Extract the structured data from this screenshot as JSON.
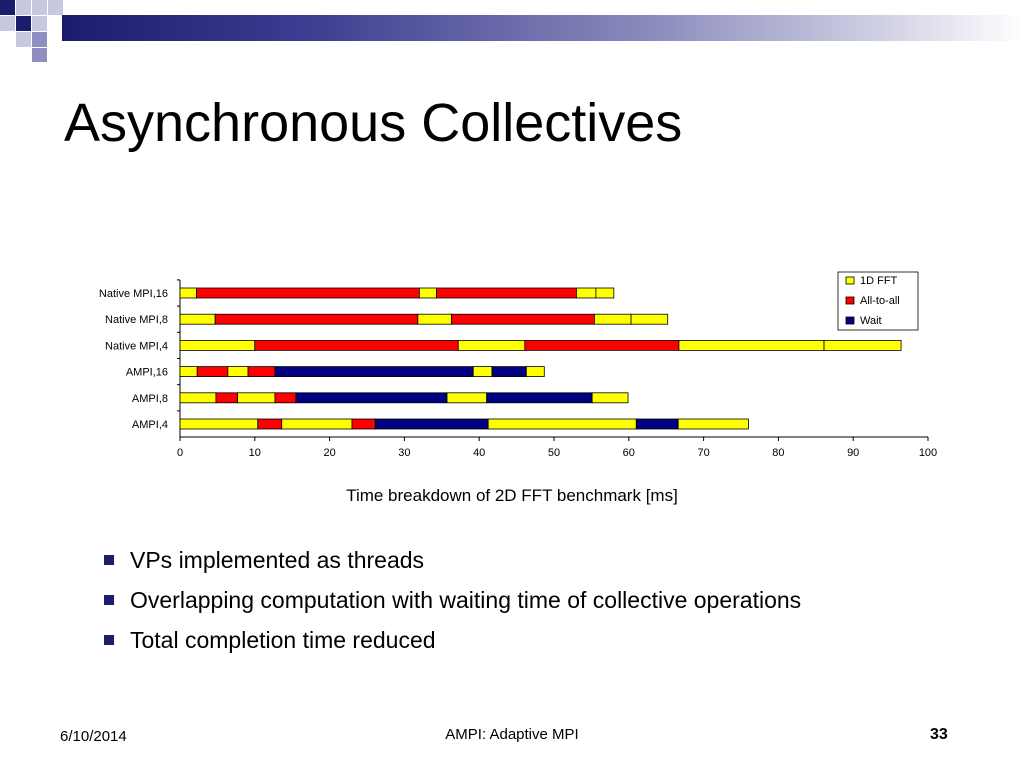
{
  "slide": {
    "title": "Asynchronous Collectives",
    "caption": "Time breakdown of 2D FFT benchmark [ms]",
    "bullets": [
      "VPs implemented as threads",
      "Overlapping computation with waiting time of collective operations",
      "Total completion time reduced"
    ],
    "footer": {
      "date": "6/10/2014",
      "center": "AMPI: Adaptive MPI",
      "page": "33"
    }
  },
  "colors": {
    "accent": "#1c1c6e",
    "fft": "#ffff00",
    "all_to_all": "#ff0000",
    "wait": "#000080"
  },
  "chart_data": {
    "type": "bar",
    "orientation": "horizontal",
    "stacked": true,
    "categories": [
      "Native MPI,16",
      "Native MPI,8",
      "Native MPI,4",
      "AMPI,16",
      "AMPI,8",
      "AMPI,4"
    ],
    "series_types": [
      "1D FFT",
      "All-to-all",
      "Wait"
    ],
    "legend_position": "top-right",
    "xlim": [
      0,
      100
    ],
    "xticks": [
      0,
      10,
      20,
      30,
      40,
      50,
      60,
      70,
      80,
      90,
      100
    ],
    "grid": false,
    "bars": [
      {
        "category": "Native MPI,16",
        "segments": [
          {
            "type": "1D FFT",
            "value": 2.2
          },
          {
            "type": "All-to-all",
            "value": 29.8
          },
          {
            "type": "1D FFT",
            "value": 2.3
          },
          {
            "type": "All-to-all",
            "value": 18.7
          },
          {
            "type": "1D FFT",
            "value": 2.6
          },
          {
            "type": "1D FFT",
            "value": 2.4
          }
        ]
      },
      {
        "category": "Native MPI,8",
        "segments": [
          {
            "type": "1D FFT",
            "value": 4.7
          },
          {
            "type": "All-to-all",
            "value": 27.1
          },
          {
            "type": "1D FFT",
            "value": 4.5
          },
          {
            "type": "All-to-all",
            "value": 19.1
          },
          {
            "type": "1D FFT",
            "value": 4.9
          },
          {
            "type": "1D FFT",
            "value": 4.9
          }
        ]
      },
      {
        "category": "Native MPI,4",
        "segments": [
          {
            "type": "1D FFT",
            "value": 10.0
          },
          {
            "type": "All-to-all",
            "value": 27.2
          },
          {
            "type": "1D FFT",
            "value": 8.9
          },
          {
            "type": "All-to-all",
            "value": 20.6
          },
          {
            "type": "1D FFT",
            "value": 19.4
          },
          {
            "type": "1D FFT",
            "value": 10.3
          }
        ]
      },
      {
        "category": "AMPI,16",
        "segments": [
          {
            "type": "1D FFT",
            "value": 2.3
          },
          {
            "type": "All-to-all",
            "value": 4.1
          },
          {
            "type": "1D FFT",
            "value": 2.7
          },
          {
            "type": "All-to-all",
            "value": 3.6
          },
          {
            "type": "Wait",
            "value": 26.5
          },
          {
            "type": "1D FFT",
            "value": 2.5
          },
          {
            "type": "Wait",
            "value": 4.6
          },
          {
            "type": "1D FFT",
            "value": 2.4
          }
        ]
      },
      {
        "category": "AMPI,8",
        "segments": [
          {
            "type": "1D FFT",
            "value": 4.8
          },
          {
            "type": "All-to-all",
            "value": 2.9
          },
          {
            "type": "1D FFT",
            "value": 5.0
          },
          {
            "type": "All-to-all",
            "value": 2.8
          },
          {
            "type": "Wait",
            "value": 20.2
          },
          {
            "type": "1D FFT",
            "value": 5.3
          },
          {
            "type": "Wait",
            "value": 14.1
          },
          {
            "type": "1D FFT",
            "value": 4.8
          }
        ]
      },
      {
        "category": "AMPI,4",
        "segments": [
          {
            "type": "1D FFT",
            "value": 10.4
          },
          {
            "type": "All-to-all",
            "value": 3.2
          },
          {
            "type": "1D FFT",
            "value": 9.4
          },
          {
            "type": "All-to-all",
            "value": 3.1
          },
          {
            "type": "Wait",
            "value": 15.1
          },
          {
            "type": "1D FFT",
            "value": 19.8
          },
          {
            "type": "Wait",
            "value": 5.6
          },
          {
            "type": "1D FFT",
            "value": 9.4
          }
        ]
      }
    ]
  }
}
